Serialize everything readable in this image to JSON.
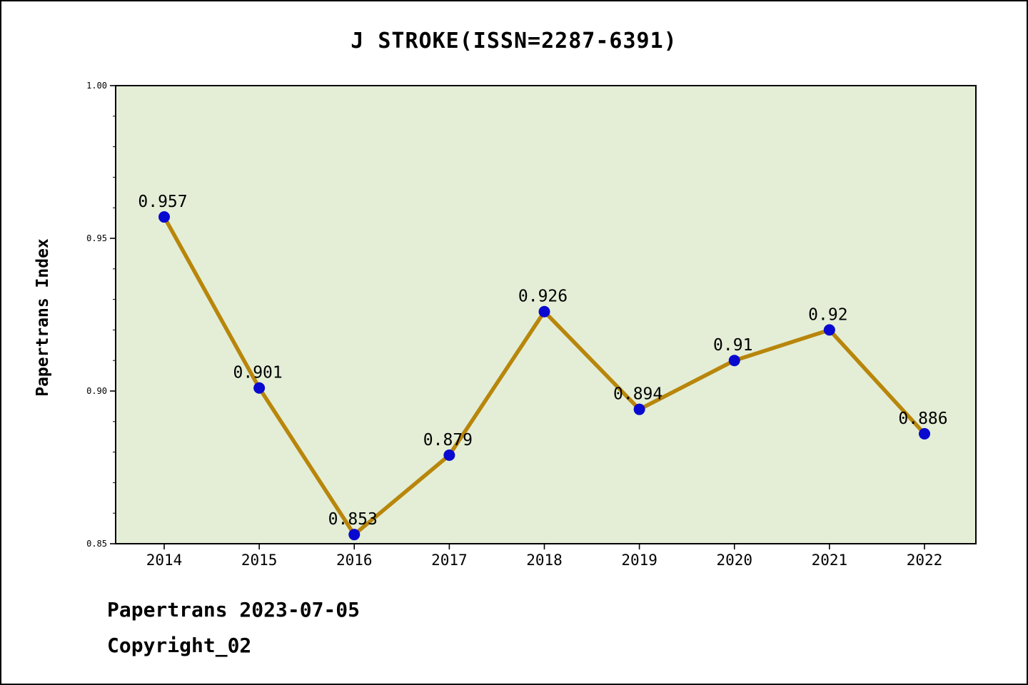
{
  "title": "J STROKE(ISSN=2287-6391)",
  "footer": {
    "line1": "Papertrans 2023-07-05",
    "line2": "Copyright_02"
  },
  "chart_data": {
    "type": "line",
    "categories": [
      "2014",
      "2015",
      "2016",
      "2017",
      "2018",
      "2019",
      "2020",
      "2021",
      "2022"
    ],
    "values": [
      0.957,
      0.901,
      0.853,
      0.879,
      0.926,
      0.894,
      0.91,
      0.92,
      0.886
    ],
    "point_labels": [
      "0.957",
      "0.901",
      "0.853",
      "0.879",
      "0.926",
      "0.894",
      "0.91",
      "0.92",
      "0.886"
    ],
    "title": "J STROKE(ISSN=2287-6391)",
    "xlabel": "",
    "ylabel": "Papertrans Index",
    "ylim": [
      0.85,
      1.0
    ],
    "ytick_values": [
      0.85,
      0.9,
      0.95,
      1.0
    ],
    "ytick_labels": [
      "0.85",
      "0.90",
      "0.95",
      "1.00"
    ],
    "y_minor_step": 0.01,
    "grid": false,
    "legend": "none",
    "colors": {
      "line": "#b8860b",
      "marker": "#0909cf",
      "plot_bg": "#e4eed7",
      "axis": "#000000",
      "text": "#000000"
    }
  }
}
